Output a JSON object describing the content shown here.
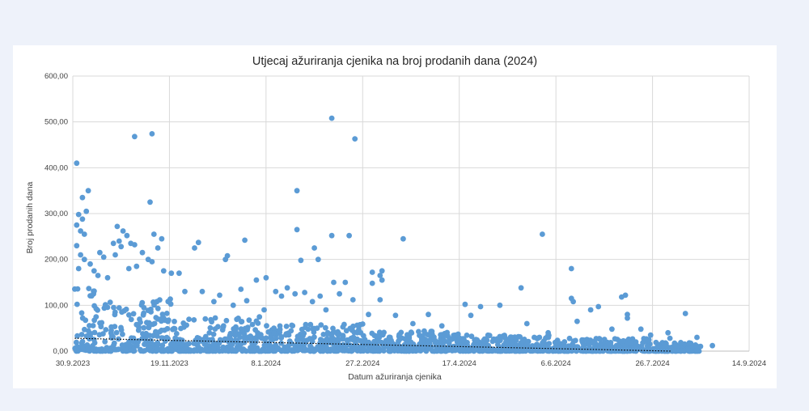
{
  "chart_data": {
    "type": "scatter",
    "title": "Utjecaj ažuriranja cjenika na broj prodanih dana (2024)",
    "xlabel": "Datum ažuriranja cjenika",
    "ylabel": "Broj prodanih dana",
    "x_axis_type": "date",
    "xlim": [
      "2023-09-30",
      "2024-09-14"
    ],
    "ylim": [
      0,
      600
    ],
    "x_ticks": [
      "2023-09-30",
      "2023-11-19",
      "2024-01-08",
      "2024-02-27",
      "2024-04-17",
      "2024-06-06",
      "2024-07-26",
      "2024-09-14"
    ],
    "x_tick_labels": [
      "30.9.2023",
      "19.11.2023",
      "8.1.2024",
      "27.2.2024",
      "17.4.2024",
      "6.6.2024",
      "26.7.2024",
      "14.9.2024"
    ],
    "y_ticks": [
      0,
      100,
      200,
      300,
      400,
      500,
      600
    ],
    "y_tick_labels": [
      "0,00",
      "100,00",
      "200,00",
      "300,00",
      "400,00",
      "500,00",
      "600,00"
    ],
    "grid": true,
    "marker_color": "#5b9bd5",
    "trendline": {
      "type": "linear",
      "style": "dotted",
      "color": "#000000",
      "x": [
        "2023-10-01",
        "2024-08-05"
      ],
      "y": [
        28,
        0
      ]
    },
    "series": [
      {
        "points": [
          {
            "x": "2023-10-02",
            "y": 410
          },
          {
            "x": "2023-10-05",
            "y": 335
          },
          {
            "x": "2023-10-08",
            "y": 350
          },
          {
            "x": "2023-10-07",
            "y": 305
          },
          {
            "x": "2023-10-03",
            "y": 298
          },
          {
            "x": "2023-10-05",
            "y": 288
          },
          {
            "x": "2023-10-02",
            "y": 275
          },
          {
            "x": "2023-10-04",
            "y": 262
          },
          {
            "x": "2023-10-06",
            "y": 255
          },
          {
            "x": "2023-10-02",
            "y": 230
          },
          {
            "x": "2023-10-04",
            "y": 210
          },
          {
            "x": "2023-10-06",
            "y": 200
          },
          {
            "x": "2023-10-09",
            "y": 190
          },
          {
            "x": "2023-10-03",
            "y": 180
          },
          {
            "x": "2023-10-11",
            "y": 175
          },
          {
            "x": "2023-10-14",
            "y": 215
          },
          {
            "x": "2023-10-16",
            "y": 205
          },
          {
            "x": "2023-10-13",
            "y": 165
          },
          {
            "x": "2023-10-18",
            "y": 160
          },
          {
            "x": "2023-10-21",
            "y": 235
          },
          {
            "x": "2023-10-24",
            "y": 240
          },
          {
            "x": "2023-10-23",
            "y": 272
          },
          {
            "x": "2023-10-26",
            "y": 262
          },
          {
            "x": "2023-10-28",
            "y": 252
          },
          {
            "x": "2023-10-30",
            "y": 235
          },
          {
            "x": "2023-11-01",
            "y": 232
          },
          {
            "x": "2023-10-25",
            "y": 228
          },
          {
            "x": "2023-10-22",
            "y": 210
          },
          {
            "x": "2023-11-02",
            "y": 185
          },
          {
            "x": "2023-11-05",
            "y": 215
          },
          {
            "x": "2023-10-29",
            "y": 180
          },
          {
            "x": "2023-11-08",
            "y": 200
          },
          {
            "x": "2023-11-01",
            "y": 468
          },
          {
            "x": "2023-11-10",
            "y": 474
          },
          {
            "x": "2023-11-09",
            "y": 325
          },
          {
            "x": "2023-11-11",
            "y": 255
          },
          {
            "x": "2023-11-15",
            "y": 245
          },
          {
            "x": "2023-11-13",
            "y": 225
          },
          {
            "x": "2023-11-10",
            "y": 195
          },
          {
            "x": "2023-11-16",
            "y": 175
          },
          {
            "x": "2023-11-20",
            "y": 170
          },
          {
            "x": "2023-11-24",
            "y": 170
          },
          {
            "x": "2023-11-27",
            "y": 130
          },
          {
            "x": "2023-12-02",
            "y": 225
          },
          {
            "x": "2023-12-04",
            "y": 237
          },
          {
            "x": "2023-12-06",
            "y": 130
          },
          {
            "x": "2023-12-12",
            "y": 108
          },
          {
            "x": "2023-12-15",
            "y": 122
          },
          {
            "x": "2023-12-18",
            "y": 200
          },
          {
            "x": "2023-12-19",
            "y": 208
          },
          {
            "x": "2023-12-22",
            "y": 100
          },
          {
            "x": "2023-12-26",
            "y": 135
          },
          {
            "x": "2023-12-28",
            "y": 242
          },
          {
            "x": "2023-12-29",
            "y": 110
          },
          {
            "x": "2024-01-03",
            "y": 155
          },
          {
            "x": "2024-01-07",
            "y": 90
          },
          {
            "x": "2024-01-08",
            "y": 160
          },
          {
            "x": "2024-01-13",
            "y": 130
          },
          {
            "x": "2024-01-16",
            "y": 120
          },
          {
            "x": "2024-01-19",
            "y": 138
          },
          {
            "x": "2024-01-23",
            "y": 125
          },
          {
            "x": "2024-01-24",
            "y": 350
          },
          {
            "x": "2024-01-24",
            "y": 265
          },
          {
            "x": "2024-01-26",
            "y": 198
          },
          {
            "x": "2024-01-28",
            "y": 128
          },
          {
            "x": "2024-02-01",
            "y": 108
          },
          {
            "x": "2024-02-02",
            "y": 225
          },
          {
            "x": "2024-02-04",
            "y": 200
          },
          {
            "x": "2024-02-05",
            "y": 120
          },
          {
            "x": "2024-02-08",
            "y": 90
          },
          {
            "x": "2024-02-11",
            "y": 508
          },
          {
            "x": "2024-02-11",
            "y": 252
          },
          {
            "x": "2024-02-12",
            "y": 150
          },
          {
            "x": "2024-02-15",
            "y": 125
          },
          {
            "x": "2024-02-18",
            "y": 150
          },
          {
            "x": "2024-02-20",
            "y": 252
          },
          {
            "x": "2024-02-22",
            "y": 112
          },
          {
            "x": "2024-02-23",
            "y": 463
          },
          {
            "x": "2024-03-01",
            "y": 80
          },
          {
            "x": "2024-03-03",
            "y": 172
          },
          {
            "x": "2024-03-03",
            "y": 148
          },
          {
            "x": "2024-03-07",
            "y": 165
          },
          {
            "x": "2024-03-08",
            "y": 175
          },
          {
            "x": "2024-03-08",
            "y": 155
          },
          {
            "x": "2024-03-07",
            "y": 112
          },
          {
            "x": "2024-03-19",
            "y": 245
          },
          {
            "x": "2024-03-15",
            "y": 78
          },
          {
            "x": "2024-03-24",
            "y": 60
          },
          {
            "x": "2024-04-01",
            "y": 80
          },
          {
            "x": "2024-04-08",
            "y": 55
          },
          {
            "x": "2024-04-20",
            "y": 102
          },
          {
            "x": "2024-04-23",
            "y": 78
          },
          {
            "x": "2024-04-28",
            "y": 97
          },
          {
            "x": "2024-05-08",
            "y": 100
          },
          {
            "x": "2024-05-19",
            "y": 138
          },
          {
            "x": "2024-05-22",
            "y": 60
          },
          {
            "x": "2024-05-30",
            "y": 255
          },
          {
            "x": "2024-06-02",
            "y": 40
          },
          {
            "x": "2024-06-14",
            "y": 180
          },
          {
            "x": "2024-06-14",
            "y": 115
          },
          {
            "x": "2024-06-15",
            "y": 108
          },
          {
            "x": "2024-06-17",
            "y": 65
          },
          {
            "x": "2024-06-24",
            "y": 90
          },
          {
            "x": "2024-06-28",
            "y": 97
          },
          {
            "x": "2024-07-05",
            "y": 48
          },
          {
            "x": "2024-07-10",
            "y": 118
          },
          {
            "x": "2024-07-12",
            "y": 122
          },
          {
            "x": "2024-07-13",
            "y": 80
          },
          {
            "x": "2024-07-13",
            "y": 72
          },
          {
            "x": "2024-07-20",
            "y": 48
          },
          {
            "x": "2024-07-25",
            "y": 35
          },
          {
            "x": "2024-08-03",
            "y": 40
          },
          {
            "x": "2024-08-04",
            "y": 28
          },
          {
            "x": "2024-08-12",
            "y": 82
          },
          {
            "x": "2024-08-14",
            "y": 18
          },
          {
            "x": "2024-08-18",
            "y": 30
          },
          {
            "x": "2024-08-26",
            "y": 12
          }
        ],
        "dense_band": [
          {
            "x_start": "2023-10-01",
            "x_end": "2023-10-12",
            "y_max": 165
          },
          {
            "x_start": "2023-10-12",
            "x_end": "2023-11-20",
            "y_max": 115
          },
          {
            "x_start": "2023-11-20",
            "x_end": "2024-01-08",
            "y_max": 75
          },
          {
            "x_start": "2024-01-08",
            "x_end": "2024-02-27",
            "y_max": 60
          },
          {
            "x_start": "2024-02-27",
            "x_end": "2024-04-17",
            "y_max": 45
          },
          {
            "x_start": "2024-04-17",
            "x_end": "2024-06-06",
            "y_max": 35
          },
          {
            "x_start": "2024-06-06",
            "x_end": "2024-07-26",
            "y_max": 28
          },
          {
            "x_start": "2024-07-26",
            "x_end": "2024-08-20",
            "y_max": 20
          }
        ]
      }
    ]
  }
}
